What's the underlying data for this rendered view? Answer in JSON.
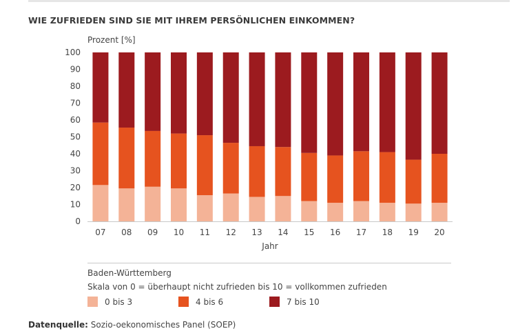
{
  "title": "WIE ZUFRIEDEN SIND SIE MIT IHREM PERSÖNLICHEN EINKOMMEN?",
  "region": "Baden-Württemberg",
  "scale_note": "Skala von 0 = überhaupt nicht zufrieden bis 10 = vollkommen zufrieden",
  "source_label": "Datenquelle:",
  "source_text": "Sozio-oekonomisches Panel (SOEP)",
  "colors": {
    "low": "#f4b397",
    "mid": "#e6531f",
    "high": "#9c1b1f"
  },
  "chart_data": {
    "type": "bar",
    "stacked": true,
    "title": "WIE ZUFRIEDEN SIND SIE MIT IHREM PERSÖNLICHEN EINKOMMEN?",
    "xlabel": "Jahr",
    "ylabel": "Prozent [%]",
    "ylim": [
      0,
      100
    ],
    "yticks": [
      0,
      10,
      20,
      30,
      40,
      50,
      60,
      70,
      80,
      90,
      100
    ],
    "categories": [
      "07",
      "08",
      "09",
      "10",
      "11",
      "12",
      "13",
      "14",
      "15",
      "16",
      "17",
      "18",
      "19",
      "20"
    ],
    "series": [
      {
        "name": "0 bis 3",
        "values": [
          21.5,
          19.5,
          20.5,
          19.5,
          15.5,
          16.5,
          14.5,
          15,
          12,
          11,
          12,
          11,
          10.5,
          11
        ]
      },
      {
        "name": "4 bis 6",
        "values": [
          37,
          36,
          33,
          32.5,
          35.5,
          30,
          30,
          29,
          28.5,
          28,
          29.5,
          30,
          26,
          29
        ]
      },
      {
        "name": "7 bis 10",
        "values": [
          41.5,
          44.5,
          46.5,
          48,
          49,
          53.5,
          55.5,
          56,
          59.5,
          61,
          58.5,
          59,
          63.5,
          60
        ]
      }
    ],
    "legend_position": "bottom"
  }
}
